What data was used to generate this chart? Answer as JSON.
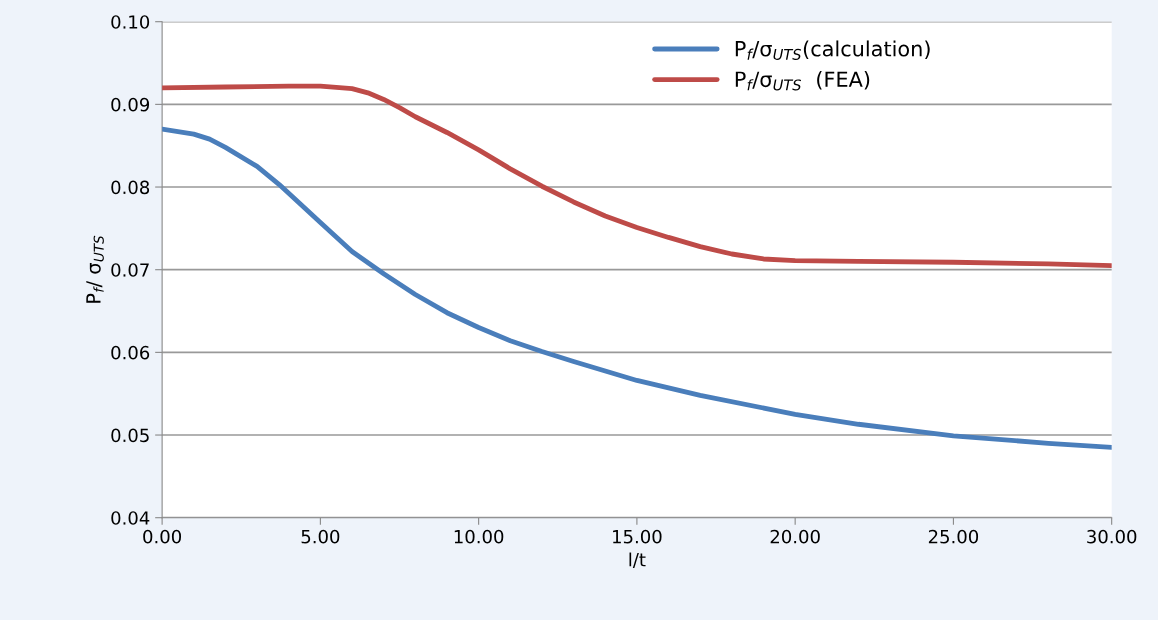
{
  "chart_data": {
    "type": "line",
    "xlabel": "l/t",
    "ylabel": "P$_{f}$/ σ$_{UTS}$",
    "series": [
      {
        "name": "P$_{f}$/σ$_{UTS}$(calculation)",
        "color": "#4a7ebb",
        "x": [
          0,
          1,
          1.5,
          2,
          3,
          3.7,
          5,
          6,
          7,
          8,
          9,
          10,
          11,
          12,
          13,
          15,
          17,
          20,
          22,
          25,
          28,
          30
        ],
        "values": [
          0.087,
          0.0864,
          0.0858,
          0.0848,
          0.0825,
          0.0803,
          0.0757,
          0.0722,
          0.0695,
          0.067,
          0.0648,
          0.063,
          0.0614,
          0.0601,
          0.0589,
          0.0566,
          0.0548,
          0.0525,
          0.0513,
          0.0499,
          0.049,
          0.0485
        ]
      },
      {
        "name": "P$_{f}$/σ$_{UTS}$  (FEA)",
        "color": "#be4b48",
        "x": [
          0,
          2,
          4,
          5,
          6,
          6.5,
          7,
          7.5,
          8,
          9,
          10,
          11,
          12,
          13,
          14,
          15,
          16,
          17,
          18,
          19,
          20,
          22,
          25,
          28,
          30
        ],
        "values": [
          0.092,
          0.0921,
          0.0922,
          0.0922,
          0.0919,
          0.0914,
          0.0906,
          0.0896,
          0.0885,
          0.0866,
          0.0845,
          0.0822,
          0.0801,
          0.0782,
          0.0765,
          0.0751,
          0.0739,
          0.0728,
          0.0719,
          0.0713,
          0.0711,
          0.071,
          0.0709,
          0.0707,
          0.0705
        ]
      }
    ],
    "xlim": [
      0,
      30
    ],
    "xticks": [
      {
        "value": 0,
        "label": "0.00"
      },
      {
        "value": 5,
        "label": "5.00"
      },
      {
        "value": 10,
        "label": "10.00"
      },
      {
        "value": 15,
        "label": "15.00"
      },
      {
        "value": 20,
        "label": "20.00"
      },
      {
        "value": 25,
        "label": "25.00"
      },
      {
        "value": 30,
        "label": "30.00"
      }
    ],
    "ylim": [
      0.04,
      0.1
    ],
    "yticks": [
      {
        "value": 0.04,
        "label": "0.04"
      },
      {
        "value": 0.05,
        "label": "0.05"
      },
      {
        "value": 0.06,
        "label": "0.06"
      },
      {
        "value": 0.07,
        "label": "0.07"
      },
      {
        "value": 0.08,
        "label": "0.08"
      },
      {
        "value": 0.09,
        "label": "0.09"
      },
      {
        "value": 0.1,
        "label": "0.10"
      }
    ],
    "grid": "y",
    "legend": "top right",
    "marker": "none",
    "line_style": "solid"
  }
}
